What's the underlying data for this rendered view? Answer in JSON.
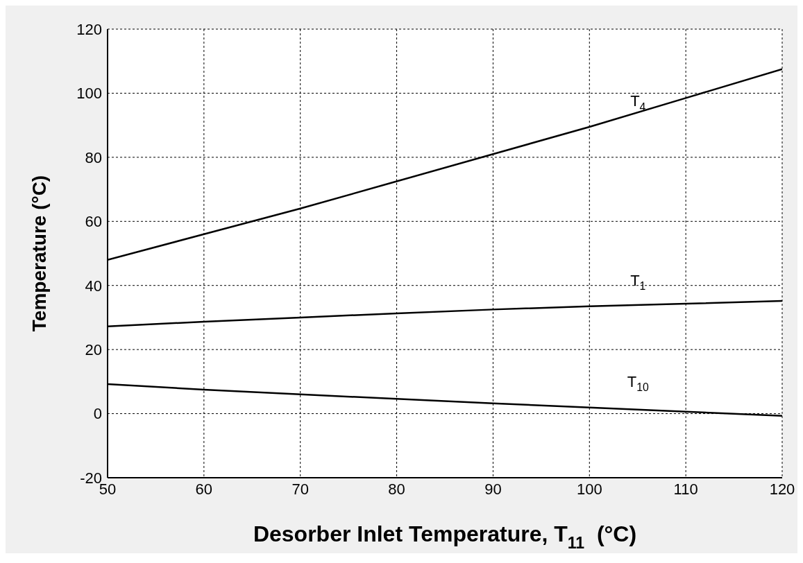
{
  "chart_data": {
    "type": "line",
    "xlabel": "Desorber Inlet Temperature, T$_{11}$  (°C)",
    "ylabel": "Temperature (°C)",
    "x": [
      50,
      60,
      70,
      80,
      90,
      100,
      110,
      120
    ],
    "series": [
      {
        "name": "T$_{4}$",
        "color": "#000000",
        "values": [
          48,
          56,
          64,
          72.5,
          81,
          89.5,
          98.5,
          107.5
        ]
      },
      {
        "name": "T$_{1}$",
        "color": "#000000",
        "values": [
          27.2,
          28.7,
          30,
          31.3,
          32.5,
          33.5,
          34.3,
          35.2
        ]
      },
      {
        "name": "T$_{10}$",
        "color": "#000000",
        "values": [
          9.2,
          7.5,
          6,
          4.6,
          3.2,
          1.9,
          0.6,
          -0.7
        ]
      }
    ],
    "xlim": [
      50,
      120
    ],
    "xticks": [
      50,
      60,
      70,
      80,
      90,
      100,
      110,
      120
    ],
    "ylim": [
      -20,
      120
    ],
    "yticks": [
      -20,
      0,
      20,
      40,
      60,
      80,
      100,
      120
    ],
    "grid": true,
    "marker": "none",
    "line_style": "solid",
    "legend": false
  }
}
